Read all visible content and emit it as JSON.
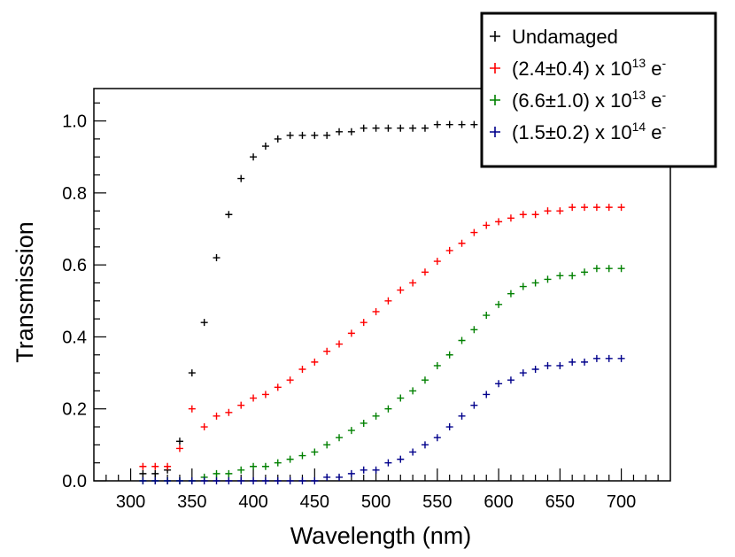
{
  "chart_data": {
    "type": "scatter",
    "title": "",
    "xlabel": "Wavelength (nm)",
    "ylabel": "Transmission",
    "xlim": [
      270,
      740
    ],
    "ylim": [
      0,
      1.09
    ],
    "x_ticks": [
      300,
      350,
      400,
      450,
      500,
      550,
      600,
      650,
      700
    ],
    "x_tick_labels": [
      "300",
      "350",
      "400",
      "450",
      "500",
      "550",
      "600",
      "650",
      "700"
    ],
    "y_ticks": [
      0.0,
      0.2,
      0.4,
      0.6,
      0.8,
      1.0
    ],
    "y_tick_labels": [
      "0.0",
      "0.2",
      "0.4",
      "0.6",
      "0.8",
      "1.0"
    ],
    "grid": false,
    "legend_position": "top-right",
    "marker": "+",
    "x": [
      310,
      320,
      330,
      340,
      350,
      360,
      370,
      380,
      390,
      400,
      410,
      420,
      430,
      440,
      450,
      460,
      470,
      480,
      490,
      500,
      510,
      520,
      530,
      540,
      550,
      560,
      570,
      580,
      590,
      600,
      610,
      620,
      630,
      640,
      650,
      660,
      670,
      680,
      690,
      700
    ],
    "series": [
      {
        "name": "Undamaged",
        "legend_text": "Undamaged",
        "color": "#000000",
        "values": [
          0.02,
          0.02,
          0.03,
          0.11,
          0.3,
          0.44,
          0.62,
          0.74,
          0.84,
          0.9,
          0.93,
          0.95,
          0.96,
          0.96,
          0.96,
          0.96,
          0.97,
          0.97,
          0.98,
          0.98,
          0.98,
          0.98,
          0.98,
          0.98,
          0.99,
          0.99,
          0.99,
          0.99,
          0.99,
          0.99,
          0.99,
          0.99,
          0.99,
          0.99,
          0.99,
          0.99,
          0.99,
          0.99,
          0.99,
          0.99
        ]
      },
      {
        "name": "(2.4±0.4) x 10^13 e^-",
        "legend_text": "(2.4±0.4) x 10",
        "legend_exp": "13",
        "legend_unit": "e",
        "legend_unit_sup": "-",
        "color": "#ff0000",
        "values": [
          0.04,
          0.04,
          0.04,
          0.09,
          0.2,
          0.15,
          0.18,
          0.19,
          0.21,
          0.23,
          0.24,
          0.26,
          0.28,
          0.31,
          0.33,
          0.36,
          0.38,
          0.41,
          0.44,
          0.47,
          0.5,
          0.53,
          0.55,
          0.58,
          0.61,
          0.64,
          0.66,
          0.69,
          0.71,
          0.72,
          0.73,
          0.74,
          0.74,
          0.75,
          0.75,
          0.76,
          0.76,
          0.76,
          0.76,
          0.76
        ]
      },
      {
        "name": "(6.6±1.0) x 10^13 e^-",
        "legend_text": "(6.6±1.0) x 10",
        "legend_exp": "13",
        "legend_unit": "e",
        "legend_unit_sup": "-",
        "color": "#008000",
        "values": [
          0.0,
          0.0,
          0.0,
          0.0,
          0.0,
          0.01,
          0.02,
          0.02,
          0.03,
          0.04,
          0.04,
          0.05,
          0.06,
          0.07,
          0.08,
          0.1,
          0.12,
          0.14,
          0.16,
          0.18,
          0.2,
          0.23,
          0.25,
          0.28,
          0.32,
          0.35,
          0.39,
          0.42,
          0.46,
          0.49,
          0.52,
          0.54,
          0.55,
          0.56,
          0.57,
          0.57,
          0.58,
          0.59,
          0.59,
          0.59
        ]
      },
      {
        "name": "(1.5±0.2) x 10^14 e^-",
        "legend_text": "(1.5±0.2) x 10",
        "legend_exp": "14",
        "legend_unit": "e",
        "legend_unit_sup": "-",
        "color": "#00008b",
        "values": [
          0.0,
          0.0,
          0.0,
          0.0,
          0.0,
          0.0,
          0.0,
          0.0,
          0.0,
          0.0,
          0.0,
          0.0,
          0.0,
          0.0,
          0.0,
          0.01,
          0.01,
          0.02,
          0.03,
          0.03,
          0.05,
          0.06,
          0.08,
          0.1,
          0.12,
          0.15,
          0.18,
          0.21,
          0.24,
          0.27,
          0.28,
          0.3,
          0.31,
          0.32,
          0.32,
          0.33,
          0.33,
          0.34,
          0.34,
          0.34
        ]
      }
    ]
  }
}
